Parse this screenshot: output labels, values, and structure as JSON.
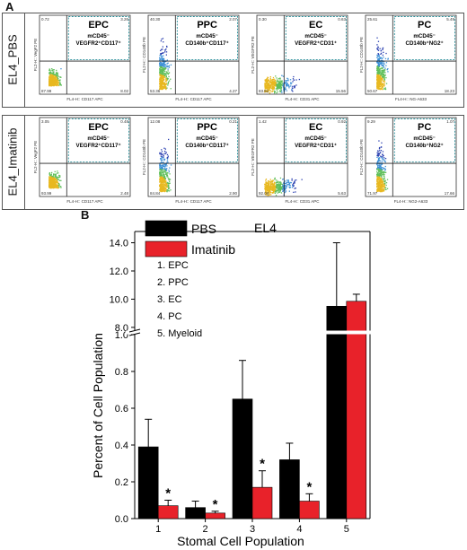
{
  "panel_a": {
    "letter": "A",
    "rows": [
      {
        "label": "EL4_PBS",
        "plots": [
          {
            "name": "EPC",
            "markers": [
              "mCD45⁻",
              "VEGFR2⁺CD117⁺"
            ],
            "ylab": "FL2-H:: VegF2 PE",
            "xlab": "FL4-H:: CD117 APC",
            "q": [
              "0.72",
              "3.26",
              "8.02",
              "87.99"
            ],
            "shape": "blob"
          },
          {
            "name": "PPC",
            "markers": [
              "mCD45⁻",
              "CD140b⁺CD117⁺"
            ],
            "ylab": "FL2-H:: CD140b PE",
            "xlab": "FL4-H:: CD117 APC",
            "q": [
              "40.30",
              "2.07",
              "4.27",
              "53.36"
            ],
            "shape": "column"
          },
          {
            "name": "EC",
            "markers": [
              "mCD45⁻",
              "VEGFR2⁺CD31⁺"
            ],
            "ylab": "FL2-H:: VEGFR2 PE",
            "xlab": "FL4-H:: CD31 APC",
            "q": [
              "0.30",
              "0.63",
              "15.56",
              "83.51"
            ],
            "shape": "smear"
          },
          {
            "name": "PC",
            "markers": [
              "mCD45⁻",
              "CD140b⁺NG2⁺"
            ],
            "ylab": "FL2-H:: CD140b PE",
            "xlab": "FL4-H:: NG-A633",
            "q": [
              "25.61",
              "5.49",
              "18.23",
              "50.67"
            ],
            "shape": "column"
          }
        ]
      },
      {
        "label": "EL4_Imatinib",
        "plots": [
          {
            "name": "EPC",
            "markers": [
              "mCD45⁻",
              "VEGFR2⁺CD117⁺"
            ],
            "ylab": "FL2-H:: VegF2 PE",
            "xlab": "FL4-H:: CD117 APC",
            "q": [
              "3.05",
              "0.48",
              "2.48",
              "93.99"
            ],
            "shape": "blob"
          },
          {
            "name": "PPC",
            "markers": [
              "mCD45⁻",
              "CD140b⁺CD117⁺"
            ],
            "ylab": "FL2-H:: CD140b PE",
            "xlab": "FL4-H:: CD117 APC",
            "q": [
              "12.08",
              "0.21",
              "2.90",
              "84.84"
            ],
            "shape": "column"
          },
          {
            "name": "EC",
            "markers": [
              "mCD45⁻",
              "VEGFR2⁺CD31⁺"
            ],
            "ylab": "FL2-H:: VEGFR2 PE",
            "xlab": "FL4-H:: CD31 APC",
            "q": [
              "1.42",
              "0.92",
              "5.63",
              "92.04"
            ],
            "shape": "smear"
          },
          {
            "name": "PC",
            "markers": [
              "mCD45⁻",
              "CD140b⁺NG2⁺"
            ],
            "ylab": "FL2-H:: CD140b PE",
            "xlab": "FL4-H:: NG2-A633",
            "q": [
              "9.29",
              "1.07",
              "17.66",
              "71.97"
            ],
            "shape": "column"
          }
        ]
      }
    ]
  },
  "chart_data": {
    "type": "bar",
    "panel_letter": "B",
    "title": "EL4",
    "xlabel": "Stomal Cell Population",
    "ylabel": "Percent of Cell Population",
    "categories": [
      "1",
      "2",
      "3",
      "4",
      "5"
    ],
    "category_key": [
      "1.  EPC",
      "2.  PPC",
      "3.  EC",
      "4.  PC",
      "5.  Myeloid"
    ],
    "series": [
      {
        "name": "PBS",
        "color": "#000000",
        "values": [
          0.39,
          0.06,
          0.65,
          0.32,
          9.5
        ],
        "errors": [
          0.15,
          0.035,
          0.21,
          0.09,
          4.5
        ]
      },
      {
        "name": "Imatinib",
        "color": "#e8222a",
        "values": [
          0.07,
          0.03,
          0.17,
          0.095,
          9.85
        ],
        "errors": [
          0.03,
          0.01,
          0.09,
          0.04,
          0.5
        ]
      }
    ],
    "significance": [
      true,
      true,
      true,
      true,
      false
    ],
    "significance_mark": "*",
    "axis_break": true,
    "ylim_lower": [
      0.0,
      1.0
    ],
    "ylim_upper": [
      7.8,
      14.8
    ],
    "yticks_lower": [
      "0.0",
      "0.2",
      "0.4",
      "0.6",
      "0.8",
      "1.0"
    ],
    "yticks_upper": [
      "8.0",
      "10.0",
      "12.0",
      "14.0"
    ],
    "legend_position": "top-left",
    "grid": false
  }
}
